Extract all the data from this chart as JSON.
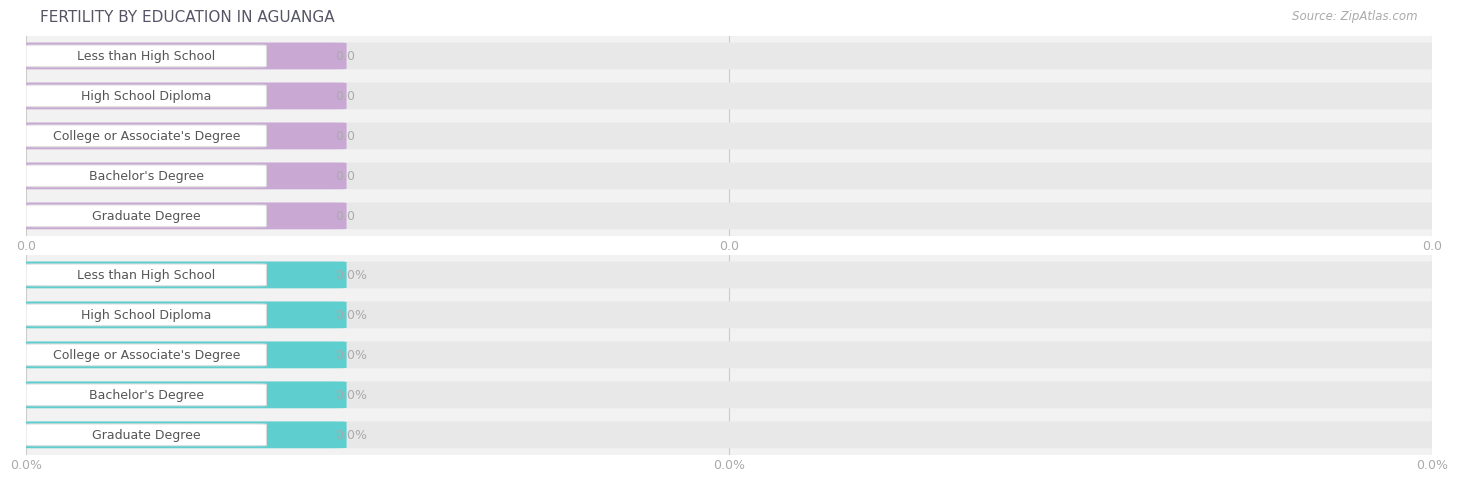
{
  "title": "FERTILITY BY EDUCATION IN AGUANGA",
  "source_text": "Source: ZipAtlas.com",
  "categories": [
    "Less than High School",
    "High School Diploma",
    "College or Associate's Degree",
    "Bachelor's Degree",
    "Graduate Degree"
  ],
  "values_top": [
    0.0,
    0.0,
    0.0,
    0.0,
    0.0
  ],
  "values_bottom": [
    0.0,
    0.0,
    0.0,
    0.0,
    0.0
  ],
  "bar_color_top": "#c9a8d4",
  "bar_color_bottom": "#5ecece",
  "bar_bg_color": "#e8e8e8",
  "row_bg_color": "#f2f2f2",
  "tick_labels_top": [
    "0.0",
    "0.0",
    "0.0"
  ],
  "tick_labels_bottom": [
    "0.0%",
    "0.0%",
    "0.0%"
  ],
  "val_color": "#aaaaaa",
  "cat_text_color": "#555555",
  "title_color": "#555566",
  "source_color": "#aaaaaa",
  "grid_color": "#cccccc",
  "background_color": "#ffffff",
  "title_fontsize": 11,
  "source_fontsize": 8.5,
  "cat_fontsize": 9,
  "val_fontsize": 9,
  "tick_fontsize": 9
}
